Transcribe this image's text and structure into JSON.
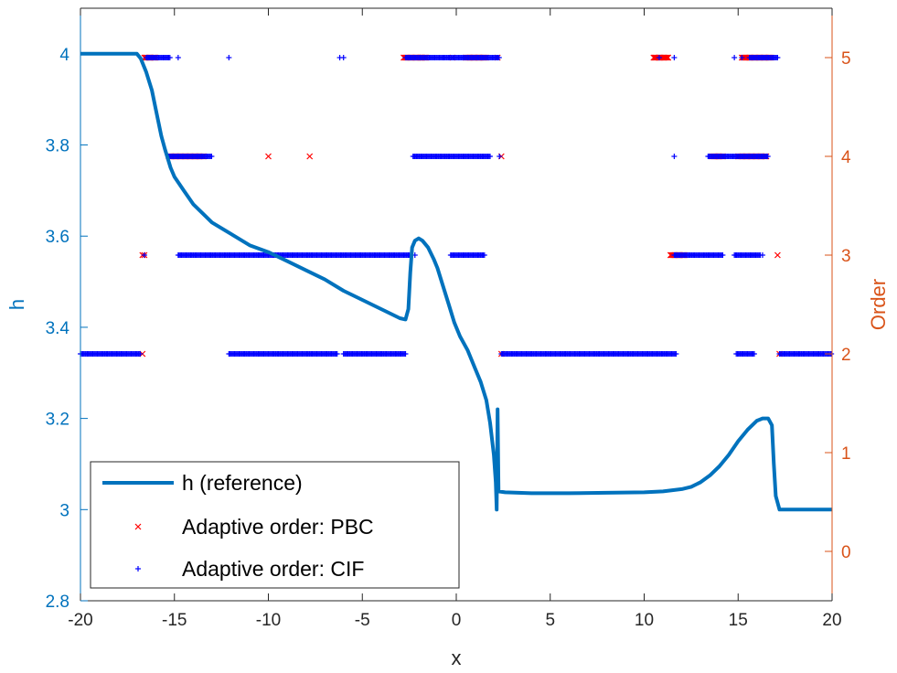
{
  "chart_data": {
    "type": "line",
    "xlabel": "x",
    "ylabel_left": "h",
    "ylabel_right": "Order",
    "xlim": [
      -20,
      20
    ],
    "ylim_left": [
      2.8,
      4.1
    ],
    "ylim_right": [
      -0.5,
      5.5
    ],
    "x_ticks": [
      -20,
      -15,
      -10,
      -5,
      0,
      5,
      10,
      15,
      20
    ],
    "x_tick_labels": [
      "-20",
      "-15",
      "-10",
      "-5",
      "0",
      "5",
      "10",
      "15",
      "20"
    ],
    "left_ticks": [
      2.8,
      3,
      3.2,
      3.4,
      3.6,
      3.8,
      4
    ],
    "left_tick_labels": [
      "2.8",
      "3",
      "3.2",
      "3.4",
      "3.6",
      "3.8",
      "4"
    ],
    "right_ticks": [
      0,
      1,
      2,
      3,
      4,
      5
    ],
    "right_tick_labels": [
      "0",
      "1",
      "2",
      "3",
      "4",
      "5"
    ],
    "grid": false,
    "legend_position": "bottom-left",
    "colors": {
      "left_axis": "#0072bd",
      "right_axis": "#d95319",
      "line": "#0072bd",
      "pbc": "#ff0000",
      "cif": "#0000ff",
      "x_axis": "#262626"
    },
    "series": [
      {
        "name": "h (reference)",
        "kind": "line",
        "axis": "left",
        "points": [
          [
            -20,
            4.0
          ],
          [
            -17.0,
            4.0
          ],
          [
            -16.8,
            3.99
          ],
          [
            -16.5,
            3.96
          ],
          [
            -16.2,
            3.92
          ],
          [
            -16.0,
            3.88
          ],
          [
            -15.7,
            3.82
          ],
          [
            -15.5,
            3.79
          ],
          [
            -15.2,
            3.75
          ],
          [
            -15.0,
            3.73
          ],
          [
            -14.5,
            3.7
          ],
          [
            -14.0,
            3.67
          ],
          [
            -13.5,
            3.65
          ],
          [
            -13.0,
            3.63
          ],
          [
            -12.0,
            3.605
          ],
          [
            -11.0,
            3.58
          ],
          [
            -10.0,
            3.565
          ],
          [
            -9.0,
            3.545
          ],
          [
            -8.0,
            3.525
          ],
          [
            -7.0,
            3.505
          ],
          [
            -6.0,
            3.48
          ],
          [
            -5.0,
            3.46
          ],
          [
            -4.0,
            3.44
          ],
          [
            -3.5,
            3.43
          ],
          [
            -3.0,
            3.42
          ],
          [
            -2.7,
            3.417
          ],
          [
            -2.55,
            3.44
          ],
          [
            -2.45,
            3.52
          ],
          [
            -2.35,
            3.575
          ],
          [
            -2.2,
            3.59
          ],
          [
            -2.0,
            3.595
          ],
          [
            -1.8,
            3.59
          ],
          [
            -1.5,
            3.575
          ],
          [
            -1.2,
            3.55
          ],
          [
            -1.0,
            3.53
          ],
          [
            -0.7,
            3.49
          ],
          [
            -0.4,
            3.45
          ],
          [
            -0.1,
            3.41
          ],
          [
            0.2,
            3.38
          ],
          [
            0.6,
            3.35
          ],
          [
            1.0,
            3.31
          ],
          [
            1.3,
            3.28
          ],
          [
            1.6,
            3.24
          ],
          [
            1.8,
            3.19
          ],
          [
            2.0,
            3.12
          ],
          [
            2.1,
            3.06
          ],
          [
            2.15,
            3.0
          ],
          [
            2.2,
            3.22
          ],
          [
            2.25,
            3.04
          ],
          [
            2.6,
            3.038
          ],
          [
            4.0,
            3.036
          ],
          [
            6.0,
            3.036
          ],
          [
            8.0,
            3.037
          ],
          [
            10.0,
            3.038
          ],
          [
            11.0,
            3.04
          ],
          [
            12.0,
            3.045
          ],
          [
            12.5,
            3.05
          ],
          [
            13.0,
            3.06
          ],
          [
            13.5,
            3.075
          ],
          [
            14.0,
            3.095
          ],
          [
            14.5,
            3.12
          ],
          [
            15.0,
            3.15
          ],
          [
            15.5,
            3.175
          ],
          [
            16.0,
            3.195
          ],
          [
            16.3,
            3.2
          ],
          [
            16.6,
            3.2
          ],
          [
            16.8,
            3.185
          ],
          [
            16.9,
            3.1
          ],
          [
            17.0,
            3.03
          ],
          [
            17.2,
            3.0
          ],
          [
            20,
            3.0
          ]
        ]
      },
      {
        "name": "Adaptive order: PBC",
        "kind": "scatter",
        "marker": "x",
        "axis": "right",
        "segments": [
          {
            "order": 5,
            "ranges": [
              [
                -16.6,
                -16.0
              ],
              [
                -2.8,
                -1.6
              ],
              [
                0.5,
                1.6
              ],
              [
                10.5,
                11.3
              ],
              [
                15.2,
                16.8
              ]
            ],
            "points": [
              -1.8,
              -0.2,
              2.2
            ]
          },
          {
            "order": 4,
            "ranges": [
              [
                -15.3,
                -13.4
              ],
              [
                13.6,
                14.2
              ],
              [
                15.0,
                16.5
              ]
            ],
            "points": [
              -10.0,
              -7.8,
              2.4
            ]
          },
          {
            "order": 3,
            "ranges": [
              [
                11.4,
                12.2
              ]
            ],
            "points": [
              -16.7,
              -16.6,
              17.1
            ]
          },
          {
            "order": 2,
            "ranges": [],
            "points": [
              -16.7,
              2.4,
              17.2
            ]
          }
        ]
      },
      {
        "name": "Adaptive order: CIF",
        "kind": "scatter",
        "marker": "+",
        "axis": "right",
        "segments": [
          {
            "order": 5,
            "ranges": [
              [
                -16.5,
                -15.2
              ],
              [
                -2.7,
                2.3
              ],
              [
                15.6,
                17.1
              ]
            ],
            "points": [
              -14.8,
              -12.1,
              -6.2,
              -6.0,
              -0.7,
              10.8,
              11.6,
              14.8,
              15.2
            ]
          },
          {
            "order": 4,
            "ranges": [
              [
                -15.3,
                -13.0
              ],
              [
                -2.3,
                -0.6
              ],
              [
                -0.6,
                1.8
              ],
              [
                13.4,
                16.6
              ]
            ],
            "points": [
              -2.2,
              2.3,
              11.6
            ]
          },
          {
            "order": 3,
            "ranges": [
              [
                -14.8,
                -2.5
              ],
              [
                -0.3,
                1.5
              ],
              [
                11.6,
                14.2
              ],
              [
                14.8,
                16.2
              ]
            ],
            "points": [
              -16.6,
              -2.2,
              16.3
            ]
          },
          {
            "order": 2,
            "ranges": [
              [
                -20.0,
                -16.8
              ],
              [
                -12.1,
                -6.3
              ],
              [
                -6.0,
                -2.7
              ],
              [
                2.4,
                11.7
              ],
              [
                14.9,
                15.9
              ],
              [
                17.2,
                20.0
              ]
            ],
            "points": []
          }
        ]
      }
    ]
  }
}
